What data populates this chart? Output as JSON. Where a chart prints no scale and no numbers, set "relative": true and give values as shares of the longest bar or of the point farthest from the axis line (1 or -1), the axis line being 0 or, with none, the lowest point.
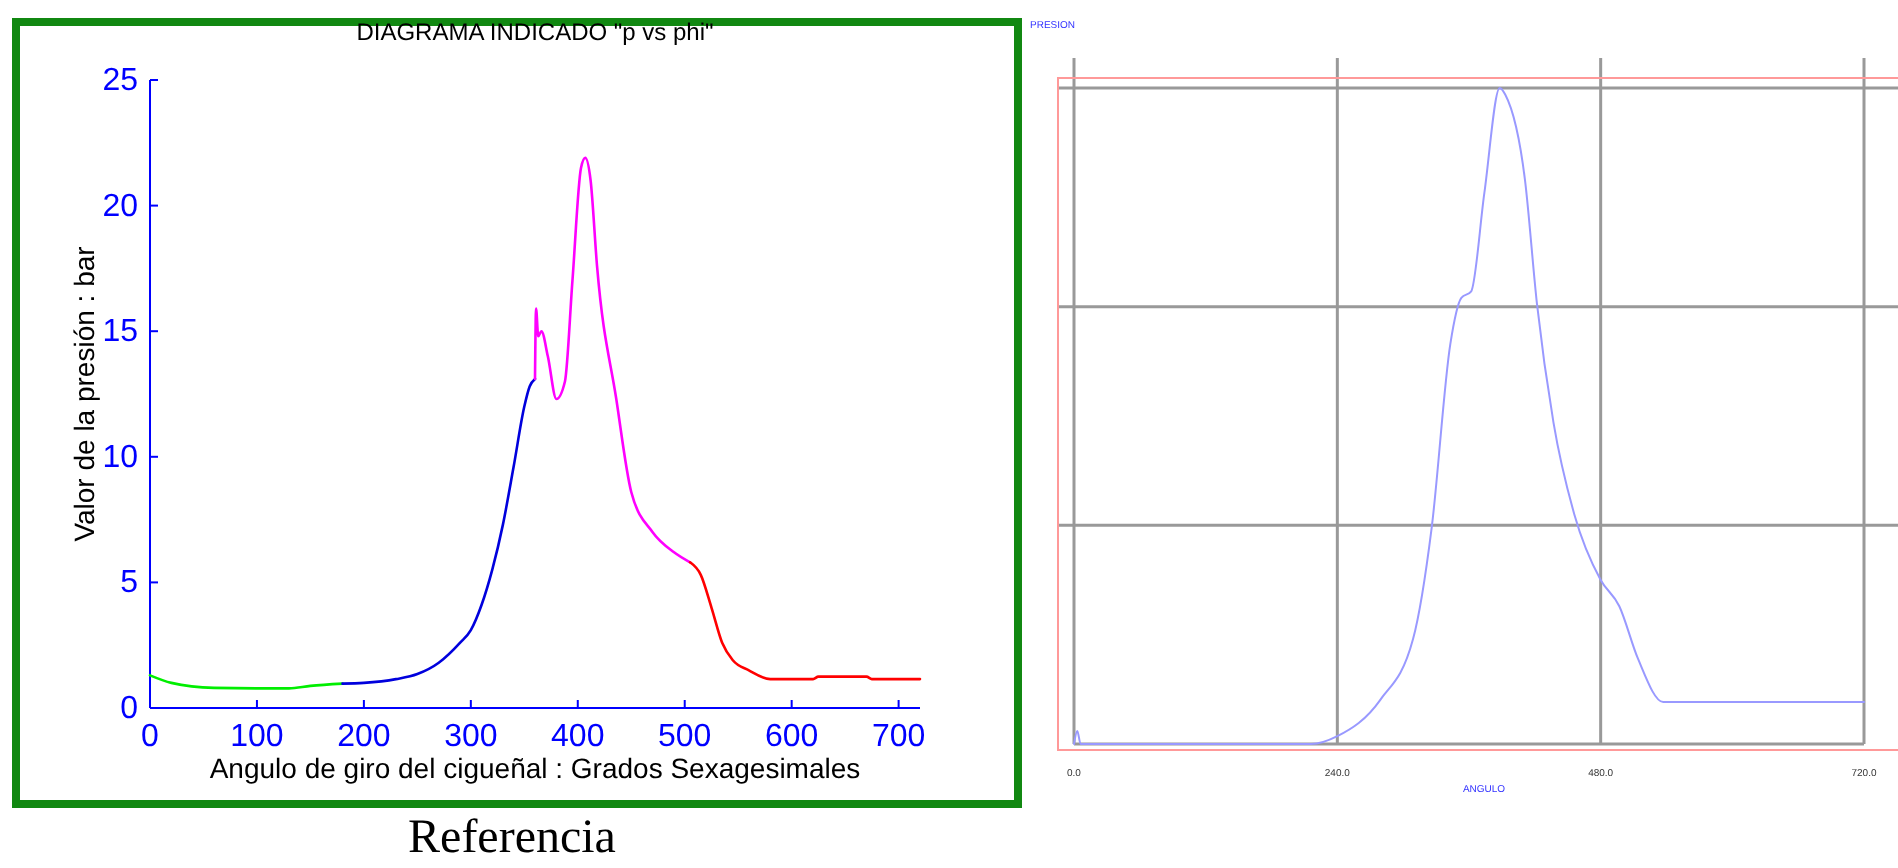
{
  "chart_data": [
    {
      "type": "line",
      "title": "DIAGRAMA INDICADO \"p vs phi\"",
      "xlabel": "Angulo de giro del cigueñal : Grados Sexagesimales",
      "ylabel": "Valor de la presión : bar",
      "xlim": [
        0,
        720
      ],
      "xticks": [
        0,
        100,
        200,
        300,
        400,
        500,
        600,
        700
      ],
      "ylim": [
        0,
        25
      ],
      "yticks": [
        0,
        5,
        10,
        15,
        20,
        25
      ],
      "grid": false,
      "annotations": [
        "Referencia"
      ],
      "series": [
        {
          "color": "#00ee00",
          "x": [
            0,
            20,
            60,
            100,
            130,
            150,
            180
          ],
          "values": [
            1.3,
            1.0,
            0.8,
            0.78,
            0.78,
            0.88,
            0.97
          ]
        },
        {
          "color": "#0000dd",
          "x": [
            180,
            200,
            230,
            250,
            270,
            290,
            300,
            310,
            320,
            330,
            340,
            350,
            355,
            360
          ],
          "values": [
            0.97,
            1.0,
            1.15,
            1.35,
            1.8,
            2.6,
            3.1,
            4.1,
            5.5,
            7.3,
            9.6,
            12.0,
            12.8,
            13.1
          ]
        },
        {
          "color": "#ff00ff",
          "x": [
            360,
            361,
            363,
            366,
            372,
            380,
            388,
            395,
            403,
            407,
            412,
            418,
            436,
            450,
            470,
            490,
            505
          ],
          "values": [
            13.1,
            15.9,
            14.8,
            15.0,
            14.0,
            12.3,
            13.0,
            17.0,
            21.5,
            21.9,
            21.0,
            17.6,
            12.3,
            8.6,
            7.0,
            6.2,
            5.8
          ]
        },
        {
          "color": "#ff0000",
          "x": [
            505,
            515,
            525,
            535,
            545,
            560,
            580,
            620,
            625,
            670,
            675,
            720
          ],
          "values": [
            5.8,
            5.3,
            4.0,
            2.6,
            1.9,
            1.5,
            1.15,
            1.15,
            1.25,
            1.25,
            1.15,
            1.15
          ]
        }
      ]
    },
    {
      "type": "line",
      "relative": true,
      "xlabel": "ANGULO",
      "ylabel": "PRESION",
      "xlim": [
        0,
        720
      ],
      "xticks": [
        {
          "value": 0,
          "label": "0.0"
        },
        {
          "value": 240,
          "label": "240.0"
        },
        {
          "value": 480,
          "label": "480.0"
        },
        {
          "value": 720,
          "label": "720.0"
        }
      ],
      "grid": true,
      "series": [
        {
          "color": "#9999ff",
          "x": [
            0,
            3,
            6,
            216,
            240,
            279,
            309,
            326,
            343,
            353,
            362,
            374,
            388,
            393,
            411,
            422,
            437,
            456,
            480,
            497,
            514,
            537,
            720
          ],
          "values": [
            0,
            0.02,
            0,
            0,
            0.012,
            0.067,
            0.16,
            0.33,
            0.61,
            0.68,
            0.69,
            0.84,
            1.0,
            0.99,
            0.86,
            0.67,
            0.49,
            0.35,
            0.25,
            0.21,
            0.13,
            0.064,
            0.064
          ]
        }
      ]
    }
  ]
}
